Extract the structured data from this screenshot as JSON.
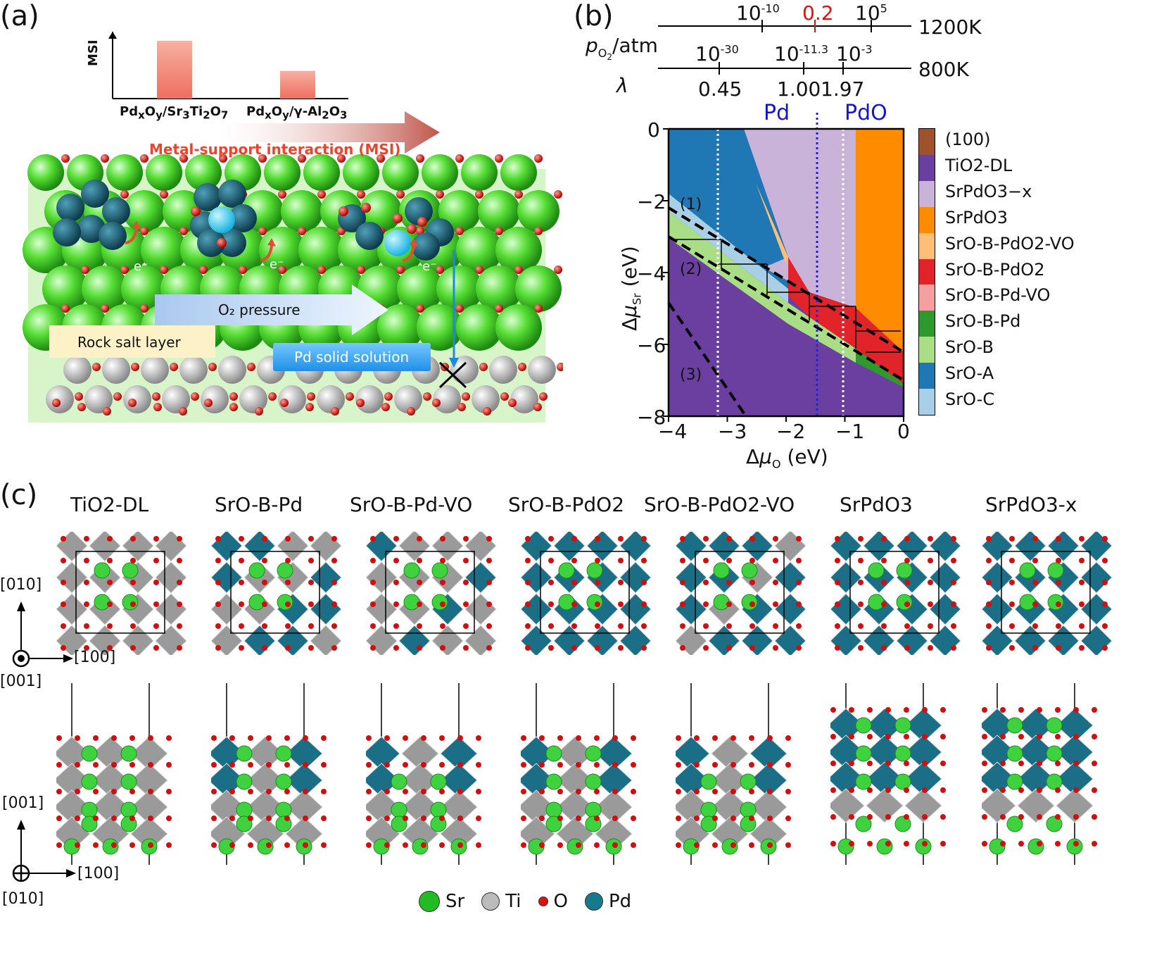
{
  "panel_a": {
    "label": "(a)",
    "msi_axis": "MSI",
    "bar_values_relative": [
      1.0,
      0.48
    ],
    "bar_labels": [
      "PdxOy/Sr3Ti2O7",
      "PdxOy/γ-Al2O3"
    ],
    "arrow_label": "Metal-support interaction (MSI)",
    "o2_pressure": "O₂ pressure",
    "rock_salt": "Rock salt layer",
    "pd_solid_solution": "Pd solid solution",
    "electron": "e⁻"
  },
  "panel_b": {
    "label": "(b)",
    "scale_1200": {
      "label": "1200K",
      "ticks": [
        "10-10",
        "0.2",
        "105"
      ],
      "highlight": "0.2"
    },
    "scale_800": {
      "label": "800K",
      "ticks": [
        "10-30",
        "10-11.3",
        "10-3"
      ]
    },
    "lambda_ticks": [
      "0.45",
      "1.00",
      "1.97"
    ],
    "po2_label": "pO2/atm",
    "lambda_label": "λ",
    "pd_label": "Pd",
    "pdo_label": "PdO",
    "region_labels": [
      "(1)",
      "(2)",
      "(3)"
    ],
    "legend": [
      "(100)",
      "TiO2-DL",
      "SrPdO3−x",
      "SrPdO3",
      "SrO-B-PdO2-VO",
      "SrO-B-PdO2",
      "SrO-B-Pd-VO",
      "SrO-B-Pd",
      "SrO-B",
      "SrO-A",
      "SrO-C"
    ],
    "legend_colors": [
      "#a0522d",
      "#6a3fa0",
      "#c9b3d8",
      "#ff8c00",
      "#ffbe78",
      "#e0242a",
      "#f4a0a0",
      "#2e9a2e",
      "#a9dd86",
      "#1f77b4",
      "#a9cfe6"
    ]
  },
  "chart_data": {
    "type": "area",
    "xlabel": "ΔμO (eV)",
    "ylabel": "ΔμSr (eV)",
    "xlim": [
      -4,
      0
    ],
    "ylim": [
      -8,
      0
    ],
    "xticks": [
      "−4",
      "−3",
      "−2",
      "−1",
      "0"
    ],
    "yticks": [
      "0",
      "−2",
      "−4",
      "−6",
      "−8"
    ],
    "vertical_lines": [
      {
        "x": -3.15,
        "style": "white-dotted"
      },
      {
        "x": -1.45,
        "style": "blue-dotted"
      },
      {
        "x": -1.0,
        "style": "white-dotted"
      }
    ]
  },
  "panel_c": {
    "label": "(c)",
    "titles": [
      "TiO2-DL",
      "SrO-B-Pd",
      "SrO-B-Pd-VO",
      "SrO-B-PdO2",
      "SrO-B-PdO2-VO",
      "SrPdO3",
      "SrPdO3-x"
    ],
    "axes_top": {
      "up": "[010]",
      "right": "[100]",
      "out": "[001]"
    },
    "axes_bottom": {
      "up": "[001]",
      "right": "[100]",
      "in": "[010]"
    },
    "legend": [
      "Sr",
      "Ti",
      "O",
      "Pd"
    ],
    "legend_colors": [
      "#22bb22",
      "#bbbbbb",
      "#dd1111",
      "#167a8c"
    ]
  }
}
